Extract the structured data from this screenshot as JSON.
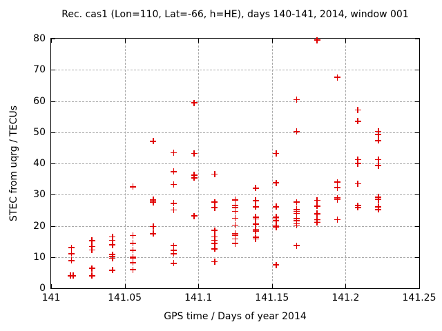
{
  "chart_data": {
    "type": "scatter",
    "title": "Rec. cas1 (Lon=110, Lat=-66, h=HE), days 140-141, 2014, window 001",
    "xlabel": "GPS time / Days of year 2014",
    "ylabel": "STEC from uqrg / TECUs",
    "xlim": [
      141,
      141.25
    ],
    "ylim": [
      0,
      80
    ],
    "xticks": [
      141,
      141.05,
      141.1,
      141.15,
      141.2,
      141.25
    ],
    "xtick_labels": [
      "141",
      "141.05",
      "141.1",
      "141.15",
      "141.2",
      "141.25"
    ],
    "yticks": [
      0,
      10,
      20,
      30,
      40,
      50,
      60,
      70,
      80
    ],
    "ytick_labels": [
      "0",
      "10",
      "20",
      "30",
      "40",
      "50",
      "60",
      "70",
      "80"
    ],
    "grid": true,
    "legend_position": "none",
    "marker": "plus",
    "marker_color": "#e00000",
    "axis_color": "#000000",
    "grid_color": "#a8a8a8",
    "series": [
      {
        "name": "STEC from uqrg",
        "points": [
          [
            141.0139,
            13.0
          ],
          [
            141.0139,
            11.1
          ],
          [
            141.0139,
            8.9
          ],
          [
            141.0132,
            4.0
          ],
          [
            141.015,
            4.0
          ],
          [
            141.0278,
            15.3
          ],
          [
            141.0278,
            13.4
          ],
          [
            141.0278,
            12.3
          ],
          [
            141.0278,
            6.4
          ],
          [
            141.0278,
            4.0
          ],
          [
            141.0417,
            16.5
          ],
          [
            141.0417,
            15.4
          ],
          [
            141.0417,
            13.9
          ],
          [
            141.0417,
            10.8
          ],
          [
            141.0417,
            10.1
          ],
          [
            141.0417,
            9.6
          ],
          [
            141.0417,
            5.8
          ],
          [
            141.0556,
            32.5
          ],
          [
            141.0556,
            16.9
          ],
          [
            141.0556,
            14.4
          ],
          [
            141.0556,
            12.2
          ],
          [
            141.0556,
            10.0
          ],
          [
            141.0556,
            9.6
          ],
          [
            141.0556,
            8.2
          ],
          [
            141.0556,
            5.9
          ],
          [
            141.0694,
            47.1
          ],
          [
            141.0694,
            28.3
          ],
          [
            141.0694,
            27.6
          ],
          [
            141.0694,
            19.8
          ],
          [
            141.0694,
            17.5
          ],
          [
            141.0833,
            43.4
          ],
          [
            141.0833,
            37.4
          ],
          [
            141.0833,
            33.3
          ],
          [
            141.0833,
            27.2
          ],
          [
            141.0833,
            25.1
          ],
          [
            141.0833,
            13.7
          ],
          [
            141.0833,
            12.1
          ],
          [
            141.0833,
            11.1
          ],
          [
            141.0833,
            8.0
          ],
          [
            141.0972,
            59.4
          ],
          [
            141.0972,
            43.2
          ],
          [
            141.0972,
            36.3
          ],
          [
            141.0972,
            35.4
          ],
          [
            141.0972,
            23.2
          ],
          [
            141.1111,
            36.6
          ],
          [
            141.1111,
            27.6
          ],
          [
            141.1111,
            25.8
          ],
          [
            141.1111,
            18.5
          ],
          [
            141.1111,
            16.5
          ],
          [
            141.1111,
            15.4
          ],
          [
            141.1111,
            14.3
          ],
          [
            141.1111,
            12.6
          ],
          [
            141.1111,
            8.5
          ],
          [
            141.125,
            28.3
          ],
          [
            141.125,
            26.5
          ],
          [
            141.125,
            25.9
          ],
          [
            141.125,
            24.6
          ],
          [
            141.125,
            22.4
          ],
          [
            141.125,
            20.2
          ],
          [
            141.125,
            17.6
          ],
          [
            141.125,
            17.0
          ],
          [
            141.125,
            15.8
          ],
          [
            141.125,
            14.3
          ],
          [
            141.1389,
            32.1
          ],
          [
            141.1389,
            28.1
          ],
          [
            141.1389,
            26.1
          ],
          [
            141.1389,
            22.8
          ],
          [
            141.1389,
            22.2
          ],
          [
            141.1389,
            20.6
          ],
          [
            141.1389,
            18.9
          ],
          [
            141.1389,
            18.4
          ],
          [
            141.1389,
            16.3
          ],
          [
            141.1389,
            15.8
          ],
          [
            141.1528,
            43.2
          ],
          [
            141.1528,
            33.8
          ],
          [
            141.1528,
            26.1
          ],
          [
            141.1528,
            22.8
          ],
          [
            141.1528,
            22.2
          ],
          [
            141.1528,
            21.7
          ],
          [
            141.1528,
            20.2
          ],
          [
            141.1528,
            19.6
          ],
          [
            141.1528,
            7.5
          ],
          [
            141.1667,
            60.4
          ],
          [
            141.1667,
            50.2
          ],
          [
            141.1667,
            27.6
          ],
          [
            141.1667,
            25.2
          ],
          [
            141.1667,
            24.6
          ],
          [
            141.1667,
            24.0
          ],
          [
            141.1667,
            22.3
          ],
          [
            141.1667,
            21.7
          ],
          [
            141.1667,
            20.7
          ],
          [
            141.1667,
            20.2
          ],
          [
            141.1667,
            13.7
          ],
          [
            141.1806,
            79.5
          ],
          [
            141.1806,
            28.2
          ],
          [
            141.1806,
            26.3
          ],
          [
            141.1806,
            24.0
          ],
          [
            141.1806,
            23.5
          ],
          [
            141.1806,
            22.0
          ],
          [
            141.1806,
            21.5
          ],
          [
            141.1806,
            21.1
          ],
          [
            141.1944,
            67.6
          ],
          [
            141.1944,
            34.0
          ],
          [
            141.1944,
            32.2
          ],
          [
            141.1944,
            28.9
          ],
          [
            141.1944,
            28.4
          ],
          [
            141.1944,
            22.0
          ],
          [
            141.2083,
            57.1
          ],
          [
            141.2083,
            53.5
          ],
          [
            141.2083,
            41.2
          ],
          [
            141.2083,
            40.0
          ],
          [
            141.2083,
            33.5
          ],
          [
            141.2083,
            26.5
          ],
          [
            141.2083,
            25.9
          ],
          [
            141.2222,
            50.3
          ],
          [
            141.2222,
            49.3
          ],
          [
            141.2222,
            47.3
          ],
          [
            141.2222,
            41.2
          ],
          [
            141.2222,
            39.3
          ],
          [
            141.2222,
            29.2
          ],
          [
            141.2222,
            28.5
          ],
          [
            141.2222,
            26.1
          ],
          [
            141.2222,
            25.2
          ]
        ]
      }
    ]
  }
}
